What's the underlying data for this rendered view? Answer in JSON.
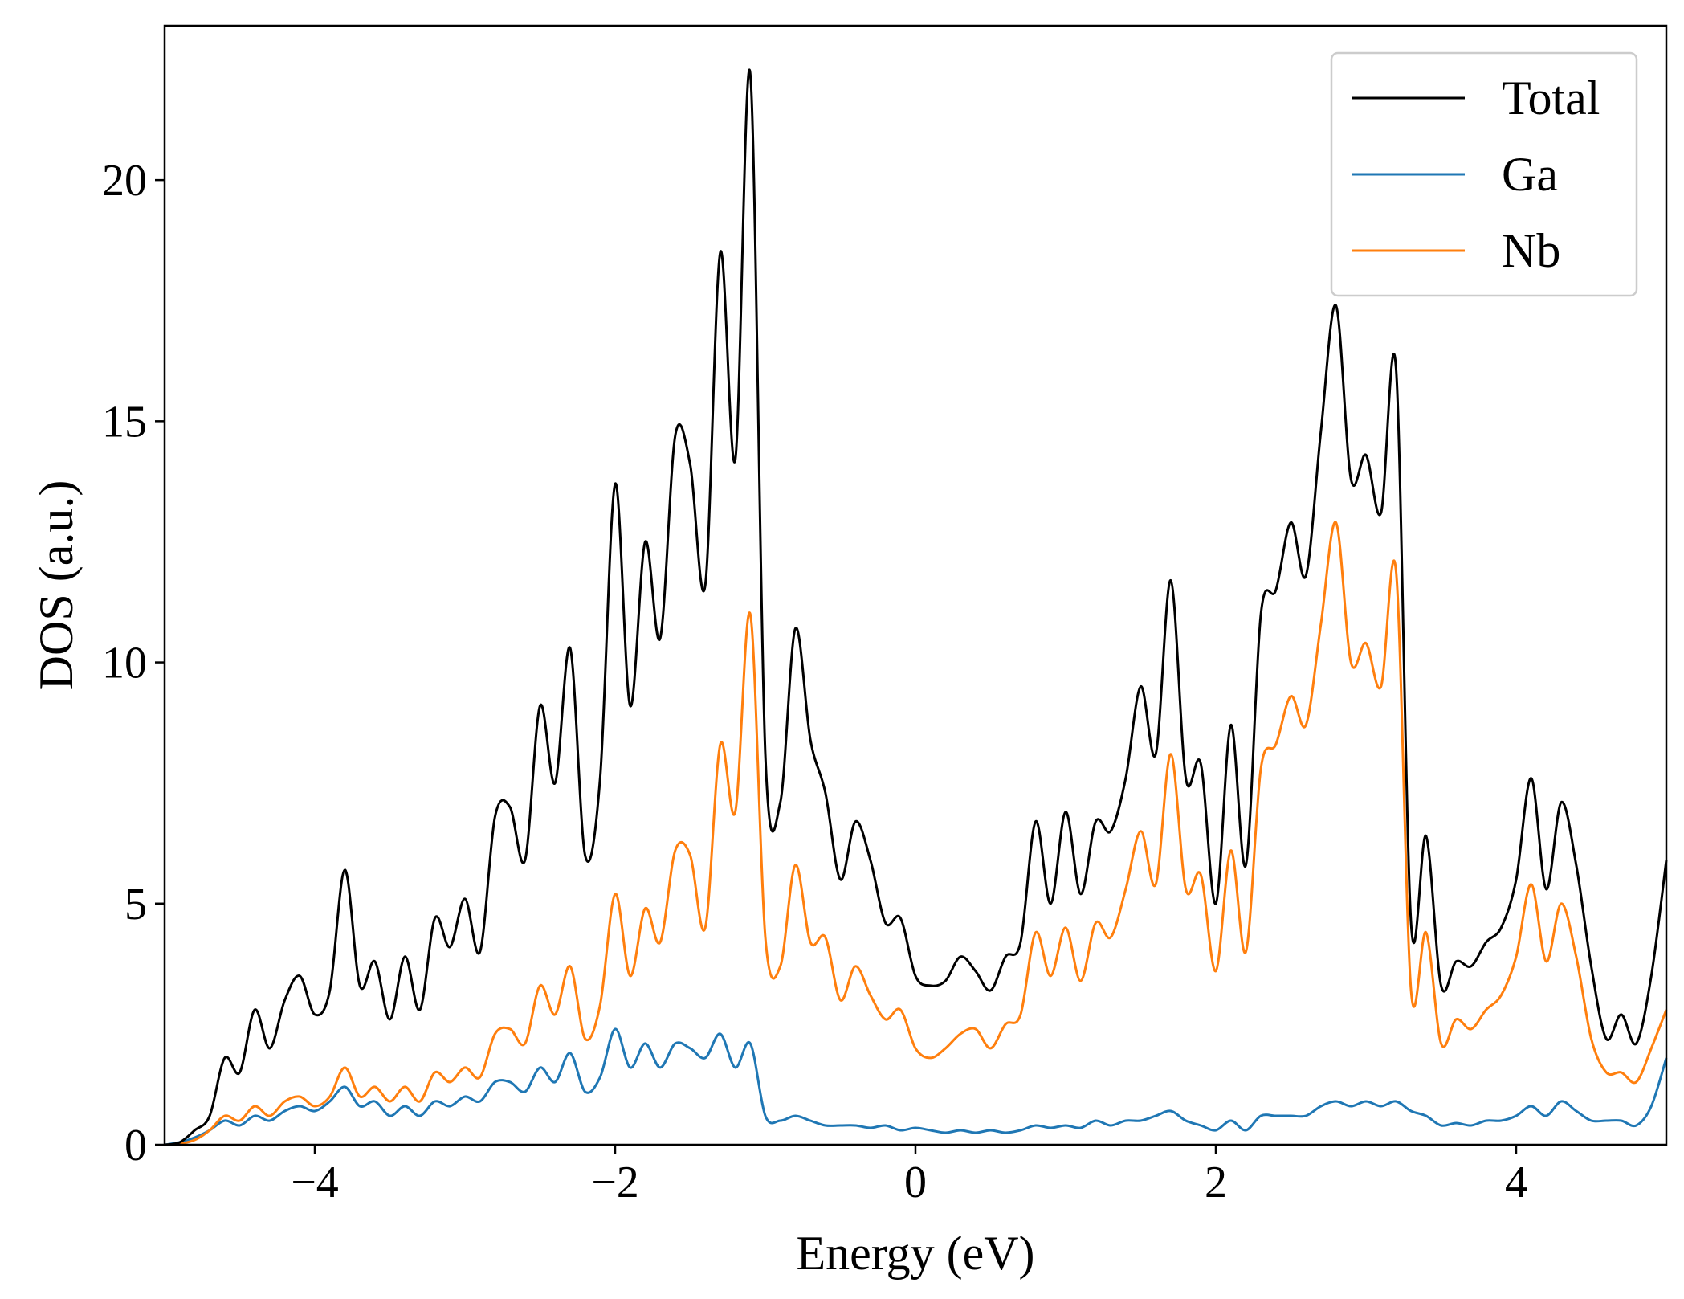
{
  "chart_data": {
    "type": "line",
    "title": "",
    "xlabel": "Energy (eV)",
    "ylabel": "DOS (a.u.)",
    "xlim": [
      -5,
      5
    ],
    "ylim": [
      0,
      23.2
    ],
    "xticks": [
      -4,
      -2,
      0,
      2,
      4
    ],
    "xtick_labels": [
      "−4",
      "−2",
      "0",
      "2",
      "4"
    ],
    "yticks": [
      0,
      5,
      10,
      15,
      20
    ],
    "ytick_labels": [
      "0",
      "5",
      "10",
      "15",
      "20"
    ],
    "grid": false,
    "legend_position": "top-right",
    "x": [
      -5.0,
      -4.9,
      -4.8,
      -4.7,
      -4.6,
      -4.5,
      -4.4,
      -4.3,
      -4.2,
      -4.1,
      -4.0,
      -3.9,
      -3.8,
      -3.7,
      -3.6,
      -3.5,
      -3.4,
      -3.3,
      -3.2,
      -3.1,
      -3.0,
      -2.9,
      -2.8,
      -2.7,
      -2.6,
      -2.5,
      -2.4,
      -2.3,
      -2.2,
      -2.1,
      -2.0,
      -1.9,
      -1.8,
      -1.7,
      -1.6,
      -1.5,
      -1.4,
      -1.3,
      -1.2,
      -1.1,
      -1.0,
      -0.9,
      -0.8,
      -0.7,
      -0.6,
      -0.5,
      -0.4,
      -0.3,
      -0.2,
      -0.1,
      0.0,
      0.1,
      0.2,
      0.3,
      0.4,
      0.5,
      0.6,
      0.7,
      0.8,
      0.9,
      1.0,
      1.1,
      1.2,
      1.3,
      1.4,
      1.5,
      1.6,
      1.7,
      1.8,
      1.9,
      2.0,
      2.1,
      2.2,
      2.3,
      2.4,
      2.5,
      2.6,
      2.7,
      2.8,
      2.9,
      3.0,
      3.1,
      3.2,
      3.3,
      3.4,
      3.5,
      3.6,
      3.7,
      3.8,
      3.9,
      4.0,
      4.1,
      4.2,
      4.3,
      4.4,
      4.5,
      4.6,
      4.7,
      4.8,
      4.9,
      5.0
    ],
    "series": [
      {
        "name": "Total",
        "color": "#000000",
        "values": [
          0.0,
          0.05,
          0.3,
          0.6,
          1.8,
          1.5,
          2.8,
          2.0,
          3.0,
          3.5,
          2.7,
          3.2,
          5.7,
          3.3,
          3.8,
          2.6,
          3.9,
          2.8,
          4.7,
          4.1,
          5.1,
          4.0,
          6.8,
          7.0,
          5.9,
          9.1,
          7.5,
          10.3,
          6.0,
          7.6,
          13.7,
          9.1,
          12.5,
          10.5,
          14.7,
          14.1,
          11.6,
          18.5,
          14.2,
          22.2,
          8.1,
          7.1,
          10.7,
          8.4,
          7.3,
          5.5,
          6.7,
          5.9,
          4.6,
          4.7,
          3.5,
          3.3,
          3.4,
          3.9,
          3.6,
          3.2,
          3.9,
          4.2,
          6.7,
          5.0,
          6.9,
          5.2,
          6.7,
          6.5,
          7.6,
          9.5,
          8.1,
          11.7,
          7.6,
          7.9,
          5.0,
          8.7,
          5.8,
          11.0,
          11.5,
          12.9,
          11.8,
          14.8,
          17.4,
          13.8,
          14.3,
          13.1,
          16.1,
          4.6,
          6.4,
          3.3,
          3.8,
          3.7,
          4.2,
          4.5,
          5.5,
          7.6,
          5.3,
          7.1,
          5.8,
          3.7,
          2.2,
          2.7,
          2.1,
          3.5,
          5.9
        ]
      },
      {
        "name": "Ga",
        "color": "#1f77b4",
        "values": [
          0.0,
          0.05,
          0.15,
          0.3,
          0.5,
          0.4,
          0.6,
          0.5,
          0.7,
          0.8,
          0.7,
          0.9,
          1.2,
          0.8,
          0.9,
          0.6,
          0.8,
          0.6,
          0.9,
          0.8,
          1.0,
          0.9,
          1.3,
          1.3,
          1.1,
          1.6,
          1.3,
          1.9,
          1.1,
          1.4,
          2.4,
          1.6,
          2.1,
          1.6,
          2.1,
          2.0,
          1.8,
          2.3,
          1.6,
          2.1,
          0.6,
          0.5,
          0.6,
          0.5,
          0.4,
          0.4,
          0.4,
          0.35,
          0.4,
          0.3,
          0.35,
          0.3,
          0.25,
          0.3,
          0.25,
          0.3,
          0.25,
          0.3,
          0.4,
          0.35,
          0.4,
          0.35,
          0.5,
          0.4,
          0.5,
          0.5,
          0.6,
          0.7,
          0.5,
          0.4,
          0.3,
          0.5,
          0.3,
          0.6,
          0.6,
          0.6,
          0.6,
          0.8,
          0.9,
          0.8,
          0.9,
          0.8,
          0.9,
          0.7,
          0.6,
          0.4,
          0.45,
          0.4,
          0.5,
          0.5,
          0.6,
          0.8,
          0.6,
          0.9,
          0.7,
          0.5,
          0.5,
          0.5,
          0.4,
          0.8,
          1.8
        ]
      },
      {
        "name": "Nb",
        "color": "#ff7f0e",
        "values": [
          0.0,
          0.02,
          0.1,
          0.3,
          0.6,
          0.5,
          0.8,
          0.6,
          0.9,
          1.0,
          0.8,
          1.0,
          1.6,
          1.0,
          1.2,
          0.9,
          1.2,
          0.9,
          1.5,
          1.3,
          1.6,
          1.4,
          2.3,
          2.4,
          2.1,
          3.3,
          2.7,
          3.7,
          2.2,
          2.9,
          5.2,
          3.5,
          4.9,
          4.2,
          6.1,
          6.0,
          4.5,
          8.3,
          6.9,
          11.0,
          4.3,
          3.7,
          5.8,
          4.2,
          4.3,
          3.0,
          3.7,
          3.1,
          2.6,
          2.8,
          2.0,
          1.8,
          2.0,
          2.3,
          2.4,
          2.0,
          2.5,
          2.7,
          4.4,
          3.5,
          4.5,
          3.4,
          4.6,
          4.3,
          5.3,
          6.5,
          5.4,
          8.1,
          5.3,
          5.6,
          3.6,
          6.1,
          4.0,
          7.8,
          8.3,
          9.3,
          8.7,
          10.8,
          12.9,
          10.0,
          10.4,
          9.5,
          11.9,
          3.2,
          4.4,
          2.1,
          2.6,
          2.4,
          2.8,
          3.1,
          3.9,
          5.4,
          3.8,
          5.0,
          3.9,
          2.2,
          1.5,
          1.5,
          1.3,
          2.0,
          2.8
        ]
      }
    ]
  }
}
